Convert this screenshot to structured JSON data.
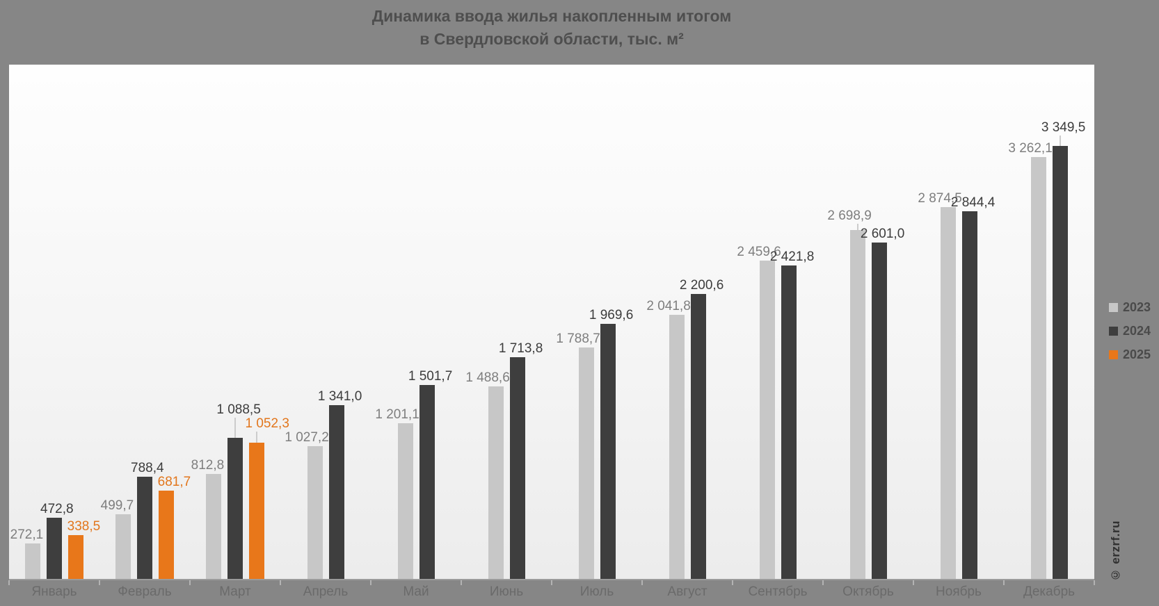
{
  "title": {
    "line1": "Динамика ввода жилья накопленным итогом",
    "line2": "в Свердловской области, тыс. м²"
  },
  "watermark": "© erzrf.ru",
  "colors": {
    "background": "#868686",
    "plot_top": "#fefefe",
    "plot_bottom": "#ececec",
    "axis_line": "#9b9b9b",
    "tick": "#b3b3b3",
    "leader_line": "#cccccc",
    "month_label": "#6a6a6a",
    "title_text": "#4e4e4e",
    "legend_text": "#4a4a4a"
  },
  "legend": {
    "position": "right",
    "items": [
      {
        "label": "2023",
        "color": "#c7c7c7"
      },
      {
        "label": "2024",
        "color": "#3e3e3e"
      },
      {
        "label": "2025",
        "color": "#e8771a"
      }
    ]
  },
  "chart_data": {
    "type": "bar",
    "title": "Динамика ввода жилья накопленным итогом в Свердловской области, тыс. м²",
    "xlabel": "",
    "ylabel": "тыс. м²",
    "ylim": [
      0,
      4000
    ],
    "grid": false,
    "value_labels": true,
    "legend_position": "right",
    "categories": [
      "Январь",
      "Февраль",
      "Март",
      "Апрель",
      "Май",
      "Июнь",
      "Июль",
      "Август",
      "Сентябрь",
      "Октябрь",
      "Ноябрь",
      "Декабрь"
    ],
    "series": [
      {
        "name": "2023",
        "color": "#c7c7c7",
        "label_color": "#7e7e7e",
        "values": [
          272.1,
          499.7,
          812.8,
          1027.2,
          1201.1,
          1488.6,
          1788.7,
          2041.8,
          2459.6,
          2698.9,
          2874.5,
          3262.1
        ],
        "labels": [
          "272,1",
          "499,7",
          "812,8",
          "1 027,2",
          "1 201,1",
          "1 488,6",
          "1 788,7",
          "2 041,8",
          "2 459,6",
          "2 698,9",
          "2 874,5",
          "3 262,1"
        ]
      },
      {
        "name": "2024",
        "color": "#3e3e3e",
        "label_color": "#3c3c3c",
        "values": [
          472.8,
          788.4,
          1088.5,
          1341.0,
          1501.7,
          1713.8,
          1969.6,
          2200.6,
          2421.8,
          2601.0,
          2844.4,
          3349.5
        ],
        "labels": [
          "472,8",
          "788,4",
          "1 088,5",
          "1 341,0",
          "1 501,7",
          "1 713,8",
          "1 969,6",
          "2 200,6",
          "2 421,8",
          "2 601,0",
          "2 844,4",
          "3 349,5"
        ]
      },
      {
        "name": "2025",
        "color": "#e8771a",
        "label_color": "#e2761c",
        "values": [
          338.5,
          681.7,
          1052.3,
          null,
          null,
          null,
          null,
          null,
          null,
          null,
          null,
          null
        ],
        "labels": [
          "338,5",
          "681,7",
          "1 052,3",
          null,
          null,
          null,
          null,
          null,
          null,
          null,
          null,
          null
        ]
      }
    ]
  }
}
